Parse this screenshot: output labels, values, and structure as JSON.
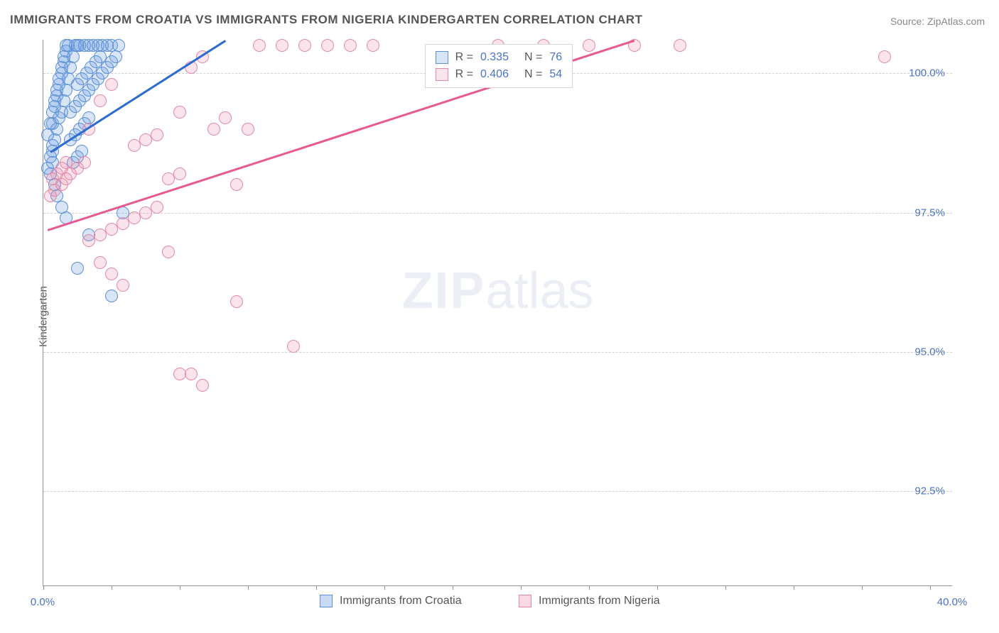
{
  "title": "IMMIGRANTS FROM CROATIA VS IMMIGRANTS FROM NIGERIA KINDERGARTEN CORRELATION CHART",
  "source_prefix": "Source: ",
  "source_link": "ZipAtlas.com",
  "ylabel": "Kindergarten",
  "watermark": {
    "zip": "ZIP",
    "atlas": "atlas"
  },
  "chart": {
    "type": "scatter",
    "background_color": "#ffffff",
    "grid_color": "#d0d0d0",
    "axis_color": "#909090",
    "tick_label_color": "#4a72c5",
    "tick_fontsize": 15,
    "xlim": [
      0,
      40
    ],
    "ylim": [
      90.8,
      100.6
    ],
    "x_ticks": [
      0,
      3,
      6,
      9,
      12,
      15,
      18,
      21,
      24,
      27,
      30,
      33,
      36,
      39
    ],
    "x_tick_labels": {
      "0": "0.0%",
      "40": "40.0%"
    },
    "y_grid": [
      92.5,
      95.0,
      97.5,
      100.0
    ],
    "y_tick_labels": {
      "92.5": "92.5%",
      "95.0": "95.0%",
      "97.5": "97.5%",
      "100.0": "100.0%"
    },
    "marker_diameter": 18,
    "marker_border_width": 1.5,
    "marker_fill_opacity": 0.25,
    "series": [
      {
        "name": "Immigrants from Croatia",
        "color_fill": "rgba(100,150,225,0.25)",
        "color_stroke": "#5b8fd6",
        "trend_color": "#2e6bd0",
        "R": "0.335",
        "N": "76",
        "trend": {
          "x1": 0.3,
          "y1": 98.6,
          "x2": 8.0,
          "y2": 100.6
        },
        "points": [
          [
            0.4,
            98.6
          ],
          [
            0.5,
            98.8
          ],
          [
            0.6,
            99.0
          ],
          [
            0.4,
            99.1
          ],
          [
            0.7,
            99.2
          ],
          [
            0.8,
            99.3
          ],
          [
            0.5,
            99.4
          ],
          [
            0.9,
            99.5
          ],
          [
            0.6,
            99.6
          ],
          [
            1.0,
            99.7
          ],
          [
            0.7,
            99.8
          ],
          [
            1.1,
            99.9
          ],
          [
            0.8,
            100.0
          ],
          [
            1.2,
            100.1
          ],
          [
            0.9,
            100.2
          ],
          [
            1.3,
            100.3
          ],
          [
            1.0,
            100.4
          ],
          [
            1.4,
            100.5
          ],
          [
            1.5,
            100.5
          ],
          [
            1.6,
            100.5
          ],
          [
            1.8,
            100.5
          ],
          [
            2.0,
            100.5
          ],
          [
            2.2,
            100.5
          ],
          [
            2.4,
            100.5
          ],
          [
            2.6,
            100.5
          ],
          [
            2.8,
            100.5
          ],
          [
            3.0,
            100.5
          ],
          [
            3.3,
            100.5
          ],
          [
            1.2,
            98.8
          ],
          [
            1.4,
            98.9
          ],
          [
            1.6,
            99.0
          ],
          [
            1.8,
            99.1
          ],
          [
            2.0,
            99.2
          ],
          [
            1.5,
            99.8
          ],
          [
            1.7,
            99.9
          ],
          [
            1.9,
            100.0
          ],
          [
            2.1,
            100.1
          ],
          [
            2.3,
            100.2
          ],
          [
            2.5,
            100.3
          ],
          [
            1.3,
            98.4
          ],
          [
            1.5,
            98.5
          ],
          [
            1.7,
            98.6
          ],
          [
            0.3,
            98.2
          ],
          [
            0.4,
            98.4
          ],
          [
            0.5,
            98.0
          ],
          [
            0.6,
            97.8
          ],
          [
            0.8,
            97.6
          ],
          [
            1.0,
            97.4
          ],
          [
            2.0,
            97.1
          ],
          [
            3.5,
            97.5
          ],
          [
            0.2,
            98.9
          ],
          [
            0.3,
            99.1
          ],
          [
            0.4,
            99.3
          ],
          [
            0.5,
            99.5
          ],
          [
            0.6,
            99.7
          ],
          [
            0.7,
            99.9
          ],
          [
            0.8,
            100.1
          ],
          [
            0.9,
            100.3
          ],
          [
            1.0,
            100.5
          ],
          [
            1.1,
            100.5
          ],
          [
            0.2,
            98.3
          ],
          [
            0.3,
            98.5
          ],
          [
            0.4,
            98.7
          ],
          [
            1.5,
            96.5
          ],
          [
            3.0,
            96.0
          ],
          [
            1.2,
            99.3
          ],
          [
            1.4,
            99.4
          ],
          [
            1.6,
            99.5
          ],
          [
            1.8,
            99.6
          ],
          [
            2.0,
            99.7
          ],
          [
            2.2,
            99.8
          ],
          [
            2.4,
            99.9
          ],
          [
            2.6,
            100.0
          ],
          [
            2.8,
            100.1
          ],
          [
            3.0,
            100.2
          ],
          [
            3.2,
            100.3
          ]
        ]
      },
      {
        "name": "Immigrants from Nigeria",
        "color_fill": "rgba(235,130,165,0.22)",
        "color_stroke": "#e389a8",
        "trend_color": "#e85a8f",
        "R": "0.406",
        "N": "54",
        "trend": {
          "x1": 0.2,
          "y1": 97.2,
          "x2": 26.0,
          "y2": 100.6
        },
        "points": [
          [
            0.3,
            97.8
          ],
          [
            0.5,
            97.9
          ],
          [
            0.8,
            98.0
          ],
          [
            1.0,
            98.1
          ],
          [
            1.2,
            98.2
          ],
          [
            1.5,
            98.3
          ],
          [
            1.8,
            98.4
          ],
          [
            2.0,
            97.0
          ],
          [
            2.5,
            97.1
          ],
          [
            3.0,
            97.2
          ],
          [
            3.5,
            97.3
          ],
          [
            4.0,
            97.4
          ],
          [
            4.5,
            97.5
          ],
          [
            5.0,
            97.6
          ],
          [
            5.5,
            98.1
          ],
          [
            6.0,
            98.2
          ],
          [
            6.5,
            100.1
          ],
          [
            7.0,
            100.3
          ],
          [
            8.0,
            99.2
          ],
          [
            8.5,
            98.0
          ],
          [
            9.5,
            100.5
          ],
          [
            10.5,
            100.5
          ],
          [
            11.5,
            100.5
          ],
          [
            12.5,
            100.5
          ],
          [
            13.5,
            100.5
          ],
          [
            14.5,
            100.5
          ],
          [
            6.0,
            94.6
          ],
          [
            6.5,
            94.6
          ],
          [
            7.0,
            94.4
          ],
          [
            8.5,
            95.9
          ],
          [
            9.0,
            99.0
          ],
          [
            2.5,
            96.6
          ],
          [
            3.0,
            96.4
          ],
          [
            3.5,
            96.2
          ],
          [
            5.5,
            96.8
          ],
          [
            4.0,
            98.7
          ],
          [
            4.5,
            98.8
          ],
          [
            5.0,
            98.9
          ],
          [
            11.0,
            95.1
          ],
          [
            37.0,
            100.3
          ],
          [
            0.4,
            98.1
          ],
          [
            0.6,
            98.2
          ],
          [
            0.8,
            98.3
          ],
          [
            1.0,
            98.4
          ],
          [
            2.0,
            99.0
          ],
          [
            2.5,
            99.5
          ],
          [
            3.0,
            99.8
          ],
          [
            6.0,
            99.3
          ],
          [
            7.5,
            99.0
          ],
          [
            20.0,
            100.5
          ],
          [
            22.0,
            100.5
          ],
          [
            24.0,
            100.5
          ],
          [
            26.0,
            100.5
          ],
          [
            28.0,
            100.5
          ]
        ]
      }
    ]
  },
  "legend_top": {
    "R_label": "R =",
    "N_label": "N ="
  },
  "legend_bottom": [
    {
      "label": "Immigrants from Croatia",
      "fill": "rgba(100,150,225,0.35)",
      "stroke": "#5b8fd6"
    },
    {
      "label": "Immigrants from Nigeria",
      "fill": "rgba(235,130,165,0.3)",
      "stroke": "#e389a8"
    }
  ]
}
